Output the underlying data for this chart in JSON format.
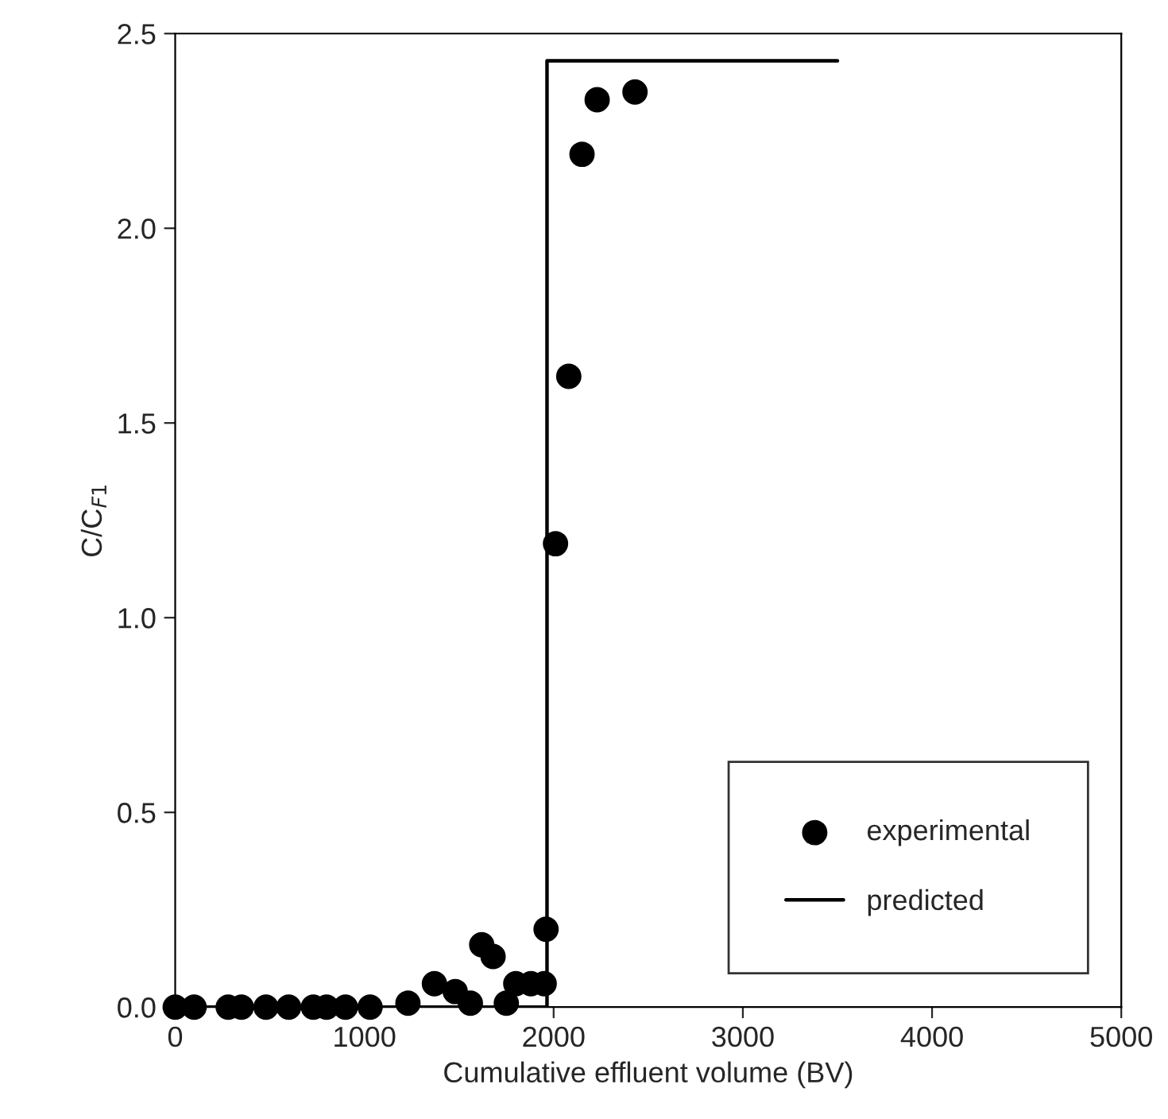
{
  "chart_data": {
    "type": "scatter",
    "xlabel": "Cumulative effluent volume (BV)",
    "ylabel": "C/C$_{F1}$",
    "xlim": [
      0,
      5000
    ],
    "ylim": [
      0,
      2.5
    ],
    "xticks": [
      0,
      1000,
      2000,
      3000,
      4000,
      5000
    ],
    "yticks": [
      {
        "value": 0,
        "label": "0.0"
      },
      {
        "value": 0.5,
        "label": "0.5"
      },
      {
        "value": 1,
        "label": "1.0"
      },
      {
        "value": 1.5,
        "label": "1.5"
      },
      {
        "value": 2,
        "label": "2.0"
      },
      {
        "value": 2.5,
        "label": "2.5"
      }
    ],
    "legend": "bottom right",
    "grid": false,
    "series": [
      {
        "name": "experimental",
        "marker": "circle",
        "color": "#000000",
        "x": [
          0,
          100,
          280,
          350,
          480,
          600,
          730,
          800,
          900,
          1030,
          1230,
          1370,
          1480,
          1560,
          1620,
          1680,
          1750,
          1800,
          1880,
          1950,
          1960,
          2010,
          2080,
          2150,
          2230,
          2430
        ],
        "values": [
          0,
          0,
          0,
          0,
          0,
          0,
          0,
          0,
          0,
          0,
          0.01,
          0.06,
          0.04,
          0.01,
          0.16,
          0.13,
          0.01,
          0.06,
          0.06,
          0.06,
          0.2,
          1.19,
          1.62,
          2.19,
          2.33,
          2.35
        ]
      },
      {
        "name": "predicted",
        "type": "line",
        "marker": "none",
        "line_style": "solid",
        "color": "#000000",
        "x": [
          0,
          1965,
          1965,
          3500
        ],
        "values": [
          0,
          0,
          2.43,
          2.43
        ]
      }
    ]
  }
}
